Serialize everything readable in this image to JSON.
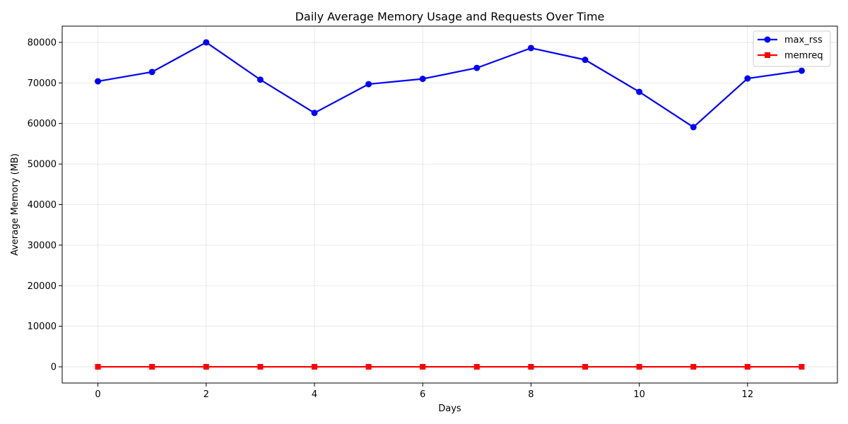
{
  "chart_data": {
    "type": "line",
    "title": "Daily Average Memory Usage and Requests Over Time",
    "xlabel": "Days",
    "ylabel": "Average Memory (MB)",
    "xlim": [
      -0.66,
      13.66
    ],
    "ylim": [
      -4000,
      84000
    ],
    "xticks": [
      0,
      2,
      4,
      6,
      8,
      10,
      12
    ],
    "yticks": [
      0,
      10000,
      20000,
      30000,
      40000,
      50000,
      60000,
      70000,
      80000
    ],
    "grid": true,
    "legend_position": "top-right",
    "x": [
      0,
      1,
      2,
      3,
      4,
      5,
      6,
      7,
      8,
      9,
      10,
      11,
      12,
      13
    ],
    "series": [
      {
        "name": "max_rss",
        "color": "#0000ff",
        "marker": "circle",
        "values": [
          70400,
          72700,
          80000,
          70800,
          62600,
          69700,
          71000,
          73700,
          78600,
          75700,
          67800,
          59100,
          71100,
          73000
        ]
      },
      {
        "name": "memreq",
        "color": "#ff0000",
        "marker": "square",
        "values": [
          0,
          0,
          0,
          0,
          0,
          0,
          0,
          0,
          0,
          0,
          0,
          0,
          0,
          0
        ]
      }
    ]
  }
}
